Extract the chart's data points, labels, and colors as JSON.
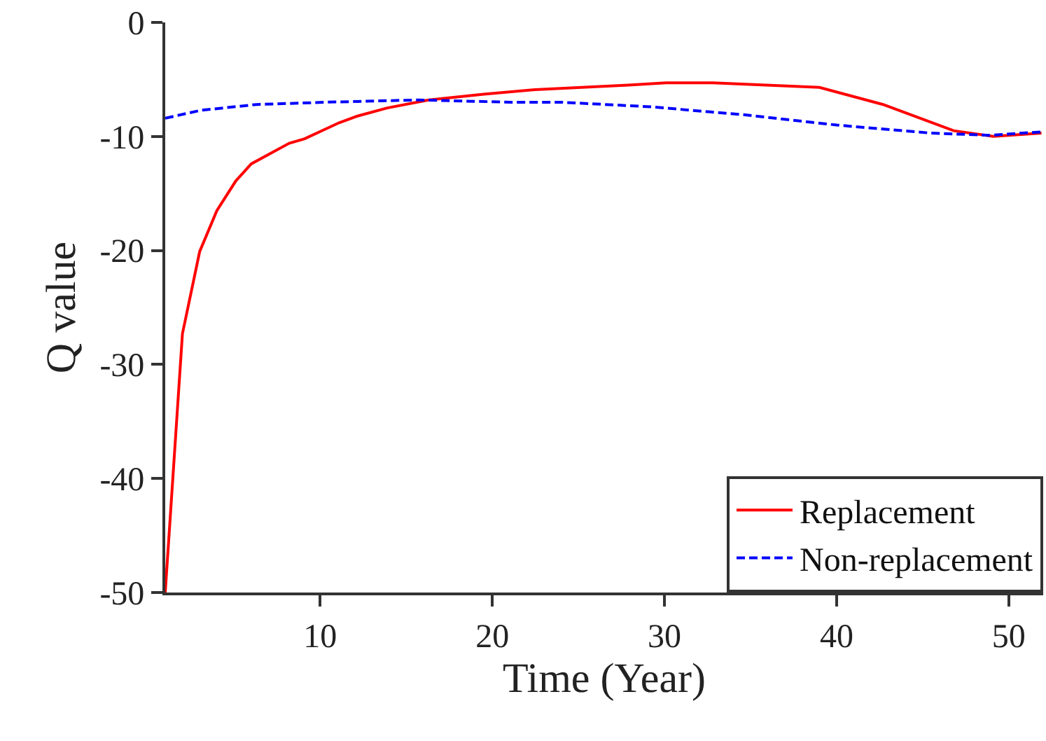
{
  "chart_data": {
    "type": "line",
    "xlabel": "Time (Year)",
    "ylabel": "Q value",
    "xlim": [
      1,
      52
    ],
    "ylim": [
      -50,
      0
    ],
    "xticks": [
      10,
      20,
      30,
      40,
      50
    ],
    "yticks": [
      -50,
      -40,
      -30,
      -20,
      -10,
      0
    ],
    "grid": false,
    "legend": "bottom right",
    "series": [
      {
        "name": "Replacement",
        "color": "#ff0000",
        "line_style": "solid",
        "x": [
          1,
          2,
          3,
          4,
          5.1,
          6,
          8.2,
          9.1,
          11.1,
          12.2,
          13.9,
          16.3,
          19.5,
          22.5,
          27.9,
          30.1,
          32.8,
          39,
          42.7,
          46.8,
          49.1,
          51.9
        ],
        "values": [
          -50,
          -27.3,
          -20.1,
          -16.5,
          -13.9,
          -12.4,
          -10.6,
          -10.2,
          -8.8,
          -8.2,
          -7.5,
          -6.8,
          -6.3,
          -5.9,
          -5.5,
          -5.3,
          -5.3,
          -5.7,
          -7.2,
          -9.5,
          -10,
          -9.7
        ]
      },
      {
        "name": "Non-replacement",
        "color": "#0000ff",
        "line_style": "dashed",
        "x": [
          1,
          3.1,
          6.3,
          10.3,
          15.7,
          21.1,
          24,
          29.2,
          34.6,
          40,
          45.4,
          48.9,
          51.9
        ],
        "values": [
          -8.4,
          -7.7,
          -7.2,
          -7,
          -6.8,
          -7,
          -7,
          -7.4,
          -8.1,
          -9,
          -9.7,
          -9.9,
          -9.6
        ]
      }
    ]
  }
}
